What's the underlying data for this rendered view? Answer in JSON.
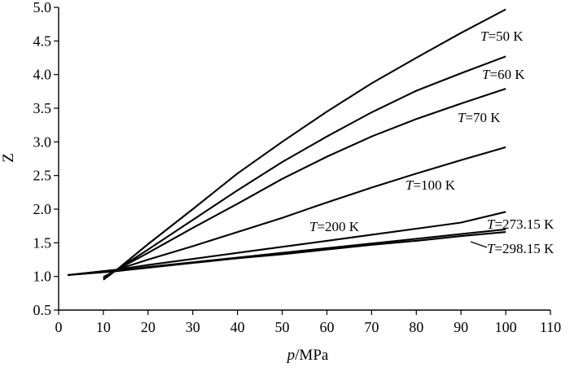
{
  "chart_data": {
    "type": "line",
    "xlabel_italic": "p",
    "xlabel_rest": "/MPa",
    "ylabel": "Z",
    "xlim": [
      0,
      110
    ],
    "ylim": [
      0.5,
      5.0
    ],
    "xticks": [
      "0",
      "10",
      "20",
      "30",
      "40",
      "50",
      "60",
      "70",
      "80",
      "90",
      "100",
      "110"
    ],
    "yticks": [
      "0.5",
      "1.0",
      "1.5",
      "2.0",
      "2.5",
      "3.0",
      "3.5",
      "4.0",
      "4.5",
      "5.0"
    ],
    "grid": false,
    "legend": "none (labels placed beside lines)",
    "series": [
      {
        "name": "50 K",
        "label_prefix": "T",
        "label_rest": "=50 K",
        "x": [
          10,
          13,
          20,
          30,
          40,
          50,
          60,
          70,
          80,
          90,
          100
        ],
        "y": [
          0.95,
          1.1,
          1.48,
          2.0,
          2.53,
          3.0,
          3.45,
          3.87,
          4.25,
          4.62,
          4.97
        ]
      },
      {
        "name": "60 K",
        "label_prefix": "T",
        "label_rest": "=60 K",
        "x": [
          10,
          13,
          20,
          30,
          40,
          50,
          60,
          70,
          80,
          90,
          100
        ],
        "y": [
          0.97,
          1.1,
          1.4,
          1.84,
          2.28,
          2.7,
          3.08,
          3.44,
          3.76,
          4.02,
          4.27
        ]
      },
      {
        "name": "70 K",
        "label_prefix": "T",
        "label_rest": "=70 K",
        "x": [
          10,
          13,
          20,
          30,
          40,
          50,
          60,
          70,
          80,
          90,
          100
        ],
        "y": [
          0.99,
          1.1,
          1.35,
          1.72,
          2.08,
          2.45,
          2.78,
          3.08,
          3.34,
          3.57,
          3.79
        ]
      },
      {
        "name": "100 K",
        "label_prefix": "T",
        "label_rest": "=100 K",
        "x": [
          2,
          13,
          20,
          30,
          40,
          50,
          60,
          70,
          80,
          90,
          100
        ],
        "y": [
          1.02,
          1.1,
          1.25,
          1.45,
          1.66,
          1.87,
          2.1,
          2.32,
          2.53,
          2.73,
          2.92
        ]
      },
      {
        "name": "200 K",
        "label_prefix": "T",
        "label_rest": "=200 K",
        "x": [
          2,
          13,
          20,
          30,
          40,
          50,
          60,
          70,
          80,
          90,
          100
        ],
        "y": [
          1.02,
          1.1,
          1.17,
          1.26,
          1.35,
          1.44,
          1.53,
          1.62,
          1.71,
          1.8,
          1.96
        ]
      },
      {
        "name": "273.15 K",
        "label_prefix": "T",
        "label_rest": "=273.15 K",
        "x": [
          2,
          13,
          20,
          30,
          40,
          50,
          60,
          70,
          80,
          90,
          100
        ],
        "y": [
          1.02,
          1.08,
          1.14,
          1.21,
          1.28,
          1.35,
          1.42,
          1.49,
          1.56,
          1.63,
          1.7
        ]
      },
      {
        "name": "298.15 K",
        "label_prefix": "T",
        "label_rest": "=298.15 K",
        "x": [
          2,
          13,
          20,
          30,
          40,
          50,
          60,
          70,
          80,
          90,
          100
        ],
        "y": [
          1.02,
          1.08,
          1.13,
          1.2,
          1.27,
          1.33,
          1.4,
          1.47,
          1.53,
          1.6,
          1.66
        ]
      }
    ]
  }
}
